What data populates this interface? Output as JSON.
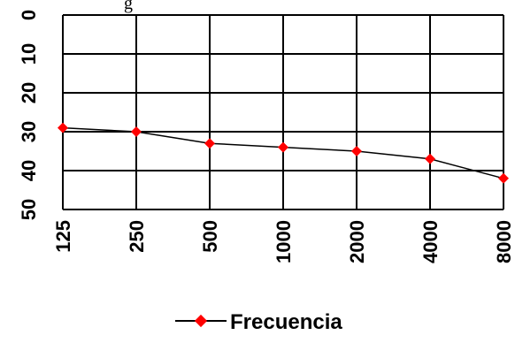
{
  "top_text_fragment": "g",
  "chart_data": {
    "type": "line",
    "categories": [
      "125",
      "250",
      "500",
      "1000",
      "2000",
      "4000",
      "8000"
    ],
    "y_ticks": [
      "0",
      "10",
      "20",
      "30",
      "40",
      "50"
    ],
    "ylim": [
      0,
      50
    ],
    "y_inverted": true,
    "grid": true,
    "legend_position": "bottom",
    "series": [
      {
        "name": "Frecuencia",
        "values": [
          29,
          30,
          33,
          34,
          35,
          37,
          42
        ],
        "color": "#000000",
        "marker": "diamond",
        "marker_color": "#ff0000"
      }
    ]
  }
}
